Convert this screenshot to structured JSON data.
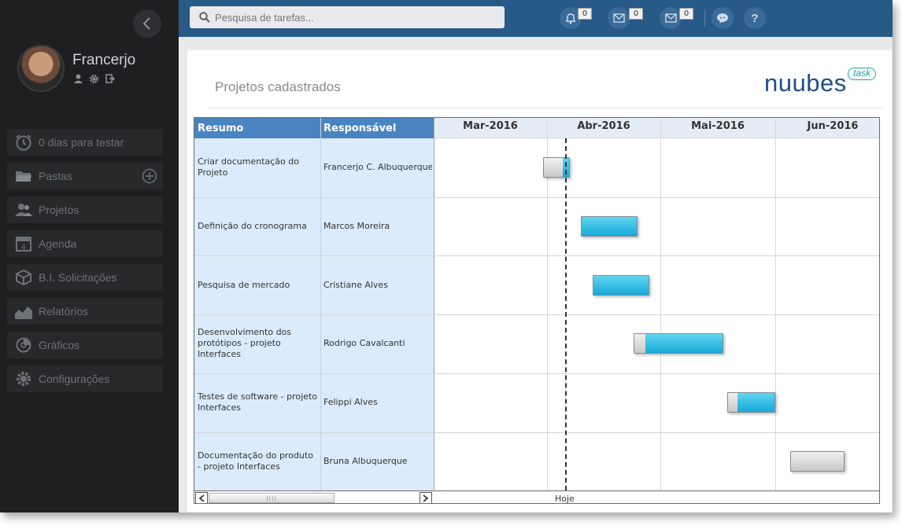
{
  "sidebar": {
    "username": "Francerjo",
    "menu": [
      {
        "label": "0 dias para testar",
        "icon": "alarm-clock-icon"
      },
      {
        "label": "Pastas",
        "icon": "folder-icon"
      },
      {
        "label": "Projetos",
        "icon": "users-icon"
      },
      {
        "label": "Agenda",
        "icon": "calendar-icon"
      },
      {
        "label": "B.I. Solicitações",
        "icon": "cube-icon"
      },
      {
        "label": "Relatórios",
        "icon": "area-chart-icon"
      },
      {
        "label": "Gráficos",
        "icon": "pie-chart-icon"
      },
      {
        "label": "Configurações",
        "icon": "gear-icon"
      }
    ],
    "calendar_day": "4"
  },
  "topbar": {
    "search_placeholder": "Pesquisa de tarefas...",
    "notifications_count": "0",
    "messages_count": "0",
    "mail_count": "0",
    "help_label": "?"
  },
  "content": {
    "page_title": "Projetos cadastrados",
    "logo_text": "nuubes",
    "logo_badge": "task"
  },
  "gantt": {
    "col_summary": "Resumo",
    "col_owner": "Responsável",
    "months": [
      "Mar-2016",
      "Abr-2016",
      "Mai-2016",
      "Jun-2016"
    ],
    "today_label": "Hoje",
    "rows": [
      {
        "summary": "Criar documentação do Projeto",
        "owner": "Francerjo C. Albuquerque",
        "start": "2016-03-31",
        "end": "2016-04-07",
        "progress": 0.75
      },
      {
        "summary": "Definição do cronograma",
        "owner": "Marcos Moreira",
        "start": "2016-04-10",
        "end": "2016-04-25",
        "progress": 0
      },
      {
        "summary": "Pesquisa de mercado",
        "owner": "Cristiane Alves",
        "start": "2016-04-13",
        "end": "2016-04-28",
        "progress": 0
      },
      {
        "summary": "Desenvolvimento dos protótipos - projeto Interfaces",
        "owner": "Rodrigo Cavalcanti",
        "start": "2016-04-24",
        "end": "2016-05-18",
        "progress": 0.12
      },
      {
        "summary": "Testes de software - projeto Interfaces",
        "owner": "Felippi Alves",
        "start": "2016-05-19",
        "end": "2016-06-01",
        "progress": 0.2
      },
      {
        "summary": "Documentação do produto - projeto Interfaces",
        "owner": "Bruna Albuquerque",
        "start": "2016-06-05",
        "end": "2016-06-19",
        "progress": 1
      }
    ],
    "today": "2016-04-06"
  }
}
